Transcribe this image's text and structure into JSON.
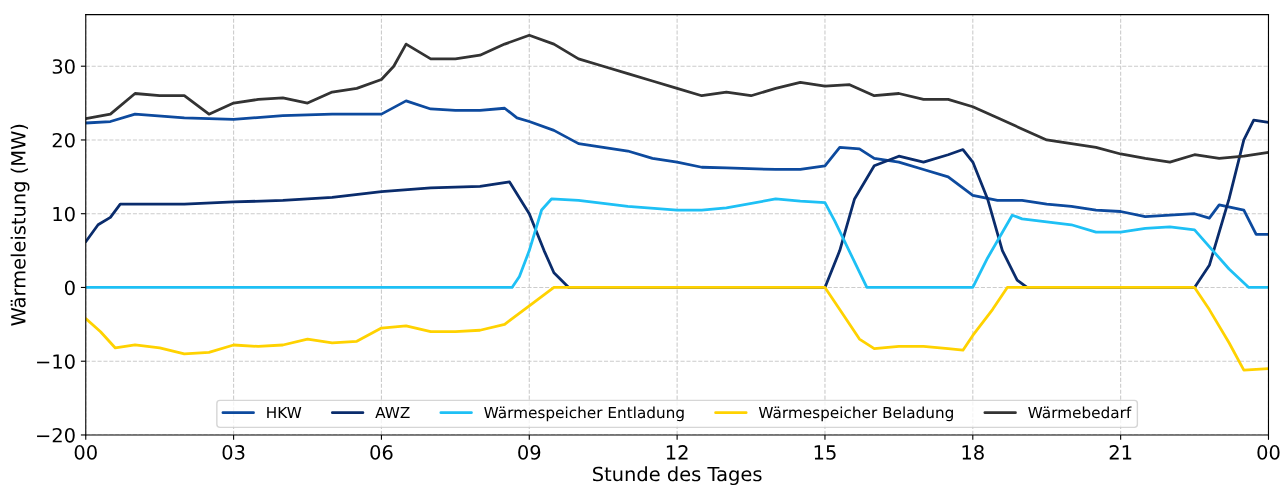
{
  "chart_data": {
    "type": "line",
    "xlabel": "Stunde des Tages",
    "ylabel": "Wärmeleistung (MW)",
    "xlim": [
      0,
      24
    ],
    "ylim": [
      -20,
      37
    ],
    "xticks": [
      {
        "value": 0,
        "label": "00"
      },
      {
        "value": 3,
        "label": "03"
      },
      {
        "value": 6,
        "label": "06"
      },
      {
        "value": 9,
        "label": "09"
      },
      {
        "value": 12,
        "label": "12"
      },
      {
        "value": 15,
        "label": "15"
      },
      {
        "value": 18,
        "label": "18"
      },
      {
        "value": 21,
        "label": "21"
      },
      {
        "value": 24,
        "label": "00"
      }
    ],
    "yticks": [
      {
        "value": -20,
        "label": "−20"
      },
      {
        "value": -10,
        "label": "−10"
      },
      0,
      10,
      20,
      30
    ],
    "grid": true,
    "legend": "bottom",
    "line_style": "solid",
    "marker": "none",
    "series": [
      {
        "name": "HKW",
        "color": "#0d4a9e",
        "x": [
          0,
          0.5,
          1,
          2,
          3,
          4,
          5,
          6,
          6.5,
          7,
          7.5,
          8,
          8.5,
          8.75,
          9,
          9.5,
          10,
          10.5,
          11,
          11.5,
          12,
          12.5,
          13,
          14,
          14.5,
          15,
          15.3,
          15.7,
          16,
          16.5,
          17,
          17.5,
          18,
          18.5,
          19,
          19.5,
          20,
          20.5,
          21,
          21.5,
          22,
          22.5,
          22.8,
          23,
          23.5,
          23.75,
          24
        ],
        "values": [
          22.3,
          22.5,
          23.5,
          23,
          22.8,
          23.3,
          23.5,
          23.5,
          25.3,
          24.2,
          24,
          24,
          24.3,
          23,
          22.5,
          21.3,
          19.5,
          19,
          18.5,
          17.5,
          17,
          16.3,
          16.2,
          16,
          16,
          16.5,
          19,
          18.8,
          17.5,
          17,
          16,
          15,
          12.5,
          11.8,
          11.8,
          11.3,
          11,
          10.5,
          10.3,
          9.6,
          9.8,
          10,
          9.4,
          11.2,
          10.5,
          7.2,
          7.2
        ]
      },
      {
        "name": "AWZ",
        "color": "#0a2c6c",
        "x": [
          0,
          0.25,
          0.5,
          0.7,
          2,
          3,
          4,
          5,
          6,
          7,
          8,
          8.6,
          9,
          9.3,
          9.5,
          9.8,
          15,
          15.3,
          15.6,
          16,
          16.5,
          17,
          17.5,
          17.8,
          18,
          18.3,
          18.6,
          18.9,
          19.1,
          22.5,
          22.8,
          23.2,
          23.5,
          23.7,
          24
        ],
        "values": [
          6.2,
          8.5,
          9.5,
          11.3,
          11.3,
          11.6,
          11.8,
          12.2,
          13,
          13.5,
          13.7,
          14.3,
          10,
          5,
          2,
          0,
          0,
          5,
          12,
          16.5,
          17.8,
          17,
          18,
          18.7,
          17,
          12,
          5,
          1,
          0,
          0,
          3,
          12,
          20,
          22.7,
          22.4
        ]
      },
      {
        "name": "Wärmespeicher Entladung",
        "color": "#1ec0f5",
        "x": [
          0,
          8.65,
          8.8,
          9,
          9.25,
          9.45,
          10,
          11,
          12,
          12.5,
          13,
          14,
          14.5,
          15,
          15.2,
          15.85,
          18,
          18.3,
          18.8,
          19,
          20,
          20.5,
          21,
          21.5,
          22,
          22.5,
          23.2,
          23.6,
          24
        ],
        "values": [
          0,
          0,
          1.5,
          5,
          10.5,
          12,
          11.8,
          11,
          10.5,
          10.5,
          10.8,
          12,
          11.7,
          11.5,
          9,
          0,
          0,
          4,
          9.8,
          9.3,
          8.5,
          7.5,
          7.5,
          8,
          8.2,
          7.8,
          2.5,
          0,
          0
        ]
      },
      {
        "name": "Wärmespeicher Beladung",
        "color": "#ffd200",
        "x": [
          0,
          0.3,
          0.6,
          1,
          1.5,
          2,
          2.5,
          3,
          3.5,
          4,
          4.5,
          5,
          5.5,
          6,
          6.5,
          7,
          7.5,
          8,
          8.5,
          9,
          9.5,
          15,
          15.3,
          15.7,
          16,
          16.5,
          17,
          17.5,
          17.8,
          18,
          18.4,
          18.7,
          22.5,
          22.8,
          23.2,
          23.5,
          24
        ],
        "values": [
          -4.2,
          -6,
          -8.2,
          -7.8,
          -8.2,
          -9,
          -8.8,
          -7.8,
          -8,
          -7.8,
          -7,
          -7.5,
          -7.3,
          -5.5,
          -5.2,
          -6,
          -6,
          -5.8,
          -5,
          -2.5,
          0,
          0,
          -3,
          -7,
          -8.3,
          -8,
          -8,
          -8.3,
          -8.5,
          -6.5,
          -3,
          0,
          0,
          -3,
          -7.5,
          -11.2,
          -11
        ]
      },
      {
        "name": "Wärmebedarf",
        "color": "#333333",
        "x": [
          0,
          0.5,
          1,
          1.5,
          2,
          2.5,
          3,
          3.5,
          4,
          4.5,
          5,
          5.5,
          6,
          6.25,
          6.5,
          7,
          7.5,
          8,
          8.5,
          9,
          9.5,
          10,
          10.5,
          11,
          11.5,
          12,
          12.5,
          13,
          13.5,
          14,
          14.5,
          15,
          15.5,
          16,
          16.5,
          17,
          17.5,
          18,
          18.5,
          19,
          19.5,
          20,
          20.5,
          21,
          21.5,
          22,
          22.5,
          23,
          23.5,
          24
        ],
        "values": [
          22.9,
          23.5,
          26.3,
          26,
          26,
          23.5,
          25,
          25.5,
          25.7,
          25,
          26.5,
          27,
          28.2,
          30,
          33,
          31,
          31,
          31.5,
          33,
          34.2,
          33,
          31,
          30,
          29,
          28,
          27,
          26,
          26.5,
          26,
          27,
          27.8,
          27.3,
          27.5,
          26,
          26.3,
          25.5,
          25.5,
          24.5,
          23,
          21.5,
          20,
          19.5,
          19,
          18.1,
          17.5,
          17,
          18,
          17.5,
          17.8,
          18.3
        ]
      }
    ]
  }
}
